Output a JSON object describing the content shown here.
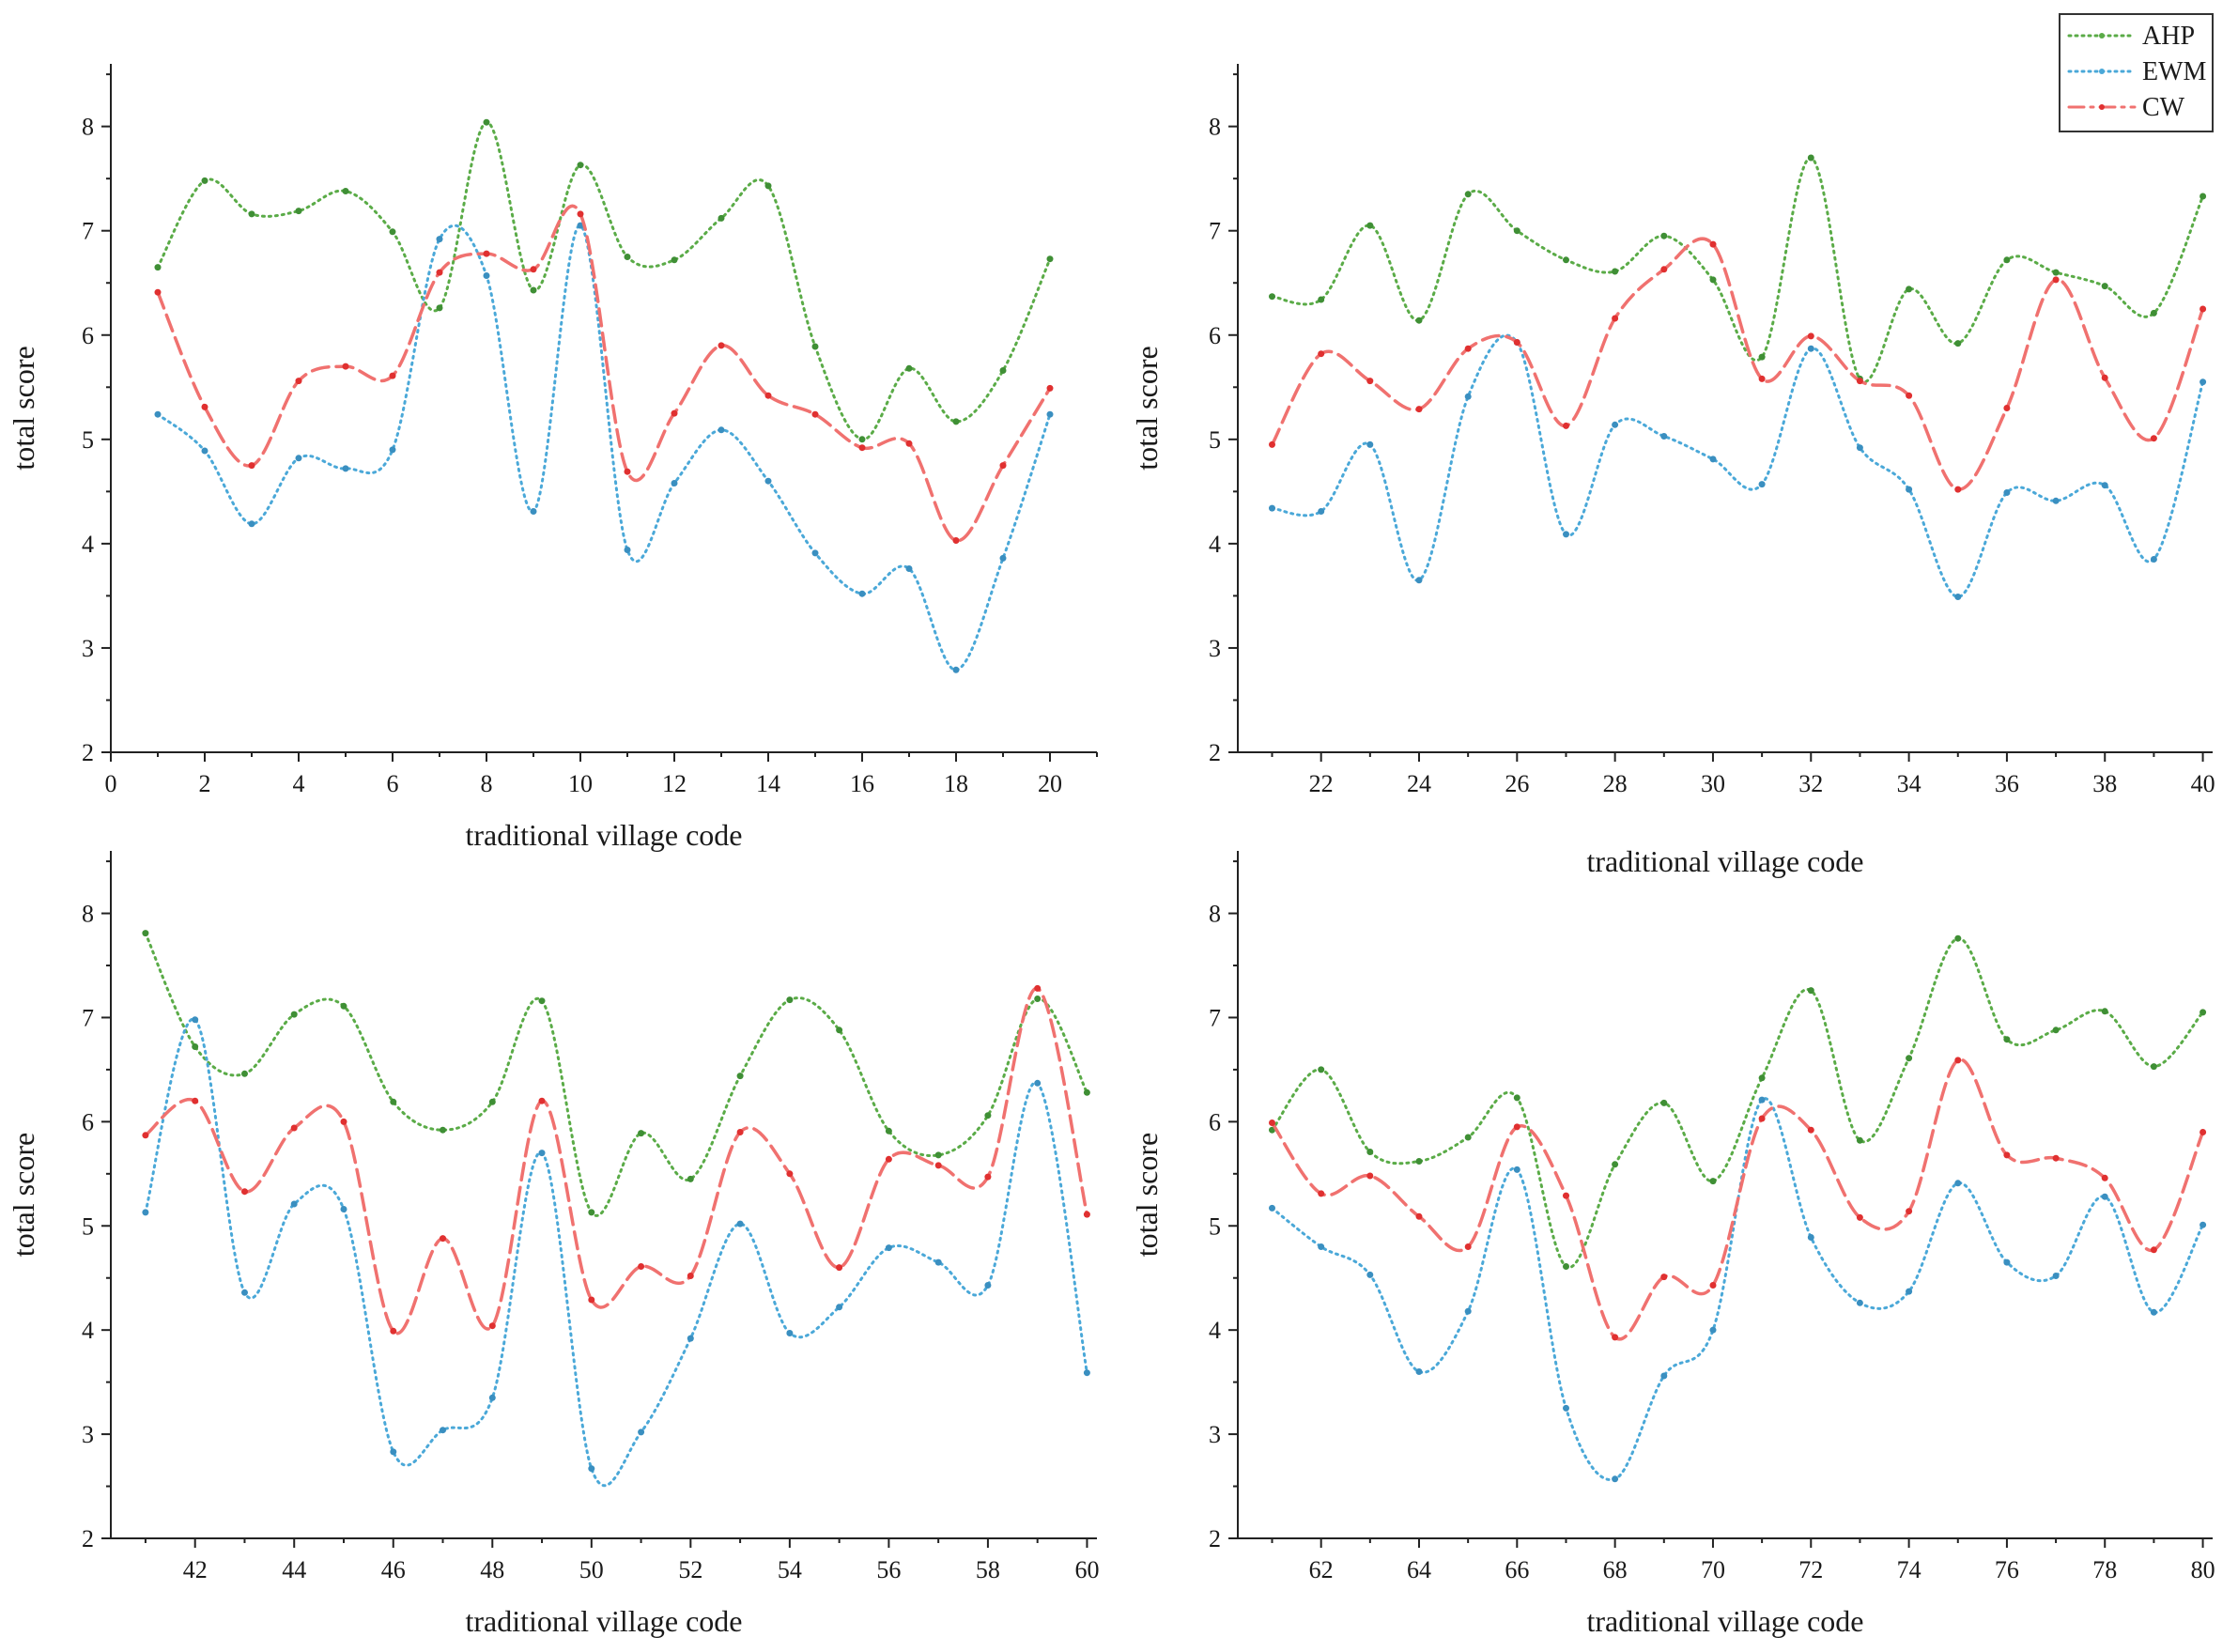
{
  "legend": {
    "items": [
      {
        "name": "AHP",
        "color": "#5aab47",
        "dash": "dotted"
      },
      {
        "name": "EWM",
        "color": "#4aa8d8",
        "dash": "dotted"
      },
      {
        "name": "CW",
        "color": "#f0716f",
        "dash": "dashdot"
      }
    ]
  },
  "chart_data": [
    {
      "type": "line",
      "title": "",
      "xlabel": "traditional village code",
      "ylabel": "total score",
      "xlim": [
        0,
        21
      ],
      "ylim": [
        2,
        8.6
      ],
      "xticks": [
        0,
        2,
        4,
        6,
        8,
        10,
        12,
        14,
        16,
        18,
        20
      ],
      "yticks": [
        2,
        3,
        4,
        5,
        6,
        7,
        8
      ],
      "x": [
        1,
        2,
        3,
        4,
        5,
        6,
        7,
        8,
        9,
        10,
        11,
        12,
        13,
        14,
        15,
        16,
        17,
        18,
        19,
        20
      ],
      "series": [
        {
          "name": "AHP",
          "values": [
            6.65,
            7.48,
            7.16,
            7.19,
            7.38,
            6.99,
            6.26,
            8.04,
            6.43,
            7.63,
            6.75,
            6.72,
            7.12,
            7.43,
            5.89,
            5.0,
            5.68,
            5.17,
            5.66,
            6.73
          ]
        },
        {
          "name": "EWM",
          "values": [
            5.24,
            4.89,
            4.19,
            4.82,
            4.72,
            4.9,
            6.92,
            6.57,
            4.31,
            7.05,
            3.94,
            4.58,
            5.09,
            4.6,
            3.91,
            3.52,
            3.76,
            2.79,
            3.86,
            5.24
          ]
        },
        {
          "name": "CW",
          "values": [
            6.41,
            5.31,
            4.75,
            5.56,
            5.7,
            5.61,
            6.6,
            6.78,
            6.63,
            7.16,
            4.69,
            5.25,
            5.9,
            5.42,
            5.24,
            4.92,
            4.96,
            4.03,
            4.75,
            5.49
          ]
        }
      ]
    },
    {
      "type": "line",
      "title": "",
      "xlabel": "traditional village code",
      "ylabel": "total score",
      "xlim": [
        20.3,
        40.2
      ],
      "ylim": [
        2,
        8.6
      ],
      "xticks": [
        22,
        24,
        26,
        28,
        30,
        32,
        34,
        36,
        38,
        40
      ],
      "yticks": [
        2,
        3,
        4,
        5,
        6,
        7,
        8
      ],
      "x": [
        21,
        22,
        23,
        24,
        25,
        26,
        27,
        28,
        29,
        30,
        31,
        32,
        33,
        34,
        35,
        36,
        37,
        38,
        39,
        40
      ],
      "series": [
        {
          "name": "AHP",
          "values": [
            6.37,
            6.34,
            7.05,
            6.14,
            7.35,
            7.0,
            6.72,
            6.61,
            6.95,
            6.53,
            5.79,
            7.7,
            5.58,
            6.44,
            5.92,
            6.72,
            6.6,
            6.47,
            6.21,
            7.33
          ]
        },
        {
          "name": "EWM",
          "values": [
            4.34,
            4.31,
            4.95,
            3.65,
            5.41,
            5.93,
            4.09,
            5.14,
            5.03,
            4.81,
            4.57,
            5.87,
            4.92,
            4.52,
            3.49,
            4.49,
            4.41,
            4.56,
            3.85,
            5.55
          ]
        },
        {
          "name": "CW",
          "values": [
            4.95,
            5.82,
            5.56,
            5.29,
            5.87,
            5.93,
            5.13,
            6.16,
            6.63,
            6.87,
            5.58,
            5.99,
            5.56,
            5.42,
            4.52,
            5.3,
            6.53,
            5.59,
            5.01,
            6.25
          ]
        }
      ]
    },
    {
      "type": "line",
      "title": "",
      "xlabel": "traditional village code",
      "ylabel": "total score",
      "xlim": [
        40.3,
        60.2
      ],
      "ylim": [
        2,
        8.6
      ],
      "xticks": [
        42,
        44,
        46,
        48,
        50,
        52,
        54,
        56,
        58,
        60
      ],
      "yticks": [
        2,
        3,
        4,
        5,
        6,
        7,
        8
      ],
      "x": [
        41,
        42,
        43,
        44,
        45,
        46,
        47,
        48,
        49,
        50,
        51,
        52,
        53,
        54,
        55,
        56,
        57,
        58,
        59,
        60
      ],
      "series": [
        {
          "name": "AHP",
          "values": [
            7.81,
            6.72,
            6.46,
            7.03,
            7.11,
            6.19,
            5.92,
            6.19,
            7.16,
            5.13,
            5.89,
            5.45,
            6.44,
            7.17,
            6.88,
            5.91,
            5.68,
            6.06,
            7.18,
            6.28
          ]
        },
        {
          "name": "EWM",
          "values": [
            5.13,
            6.98,
            4.36,
            5.21,
            5.16,
            2.83,
            3.04,
            3.35,
            5.7,
            2.67,
            3.02,
            3.92,
            5.02,
            3.97,
            4.22,
            4.79,
            4.65,
            4.43,
            6.37,
            3.59
          ]
        },
        {
          "name": "CW",
          "values": [
            5.87,
            6.2,
            5.33,
            5.94,
            6.0,
            3.99,
            4.88,
            4.04,
            6.2,
            4.29,
            4.61,
            4.52,
            5.9,
            5.5,
            4.6,
            5.64,
            5.58,
            5.47,
            7.28,
            5.11
          ]
        }
      ]
    },
    {
      "type": "line",
      "title": "",
      "xlabel": "traditional village code",
      "ylabel": "total score",
      "xlim": [
        60.3,
        80.2
      ],
      "ylim": [
        2,
        8.6
      ],
      "xticks": [
        62,
        64,
        66,
        68,
        70,
        72,
        74,
        76,
        78,
        80
      ],
      "yticks": [
        2,
        3,
        4,
        5,
        6,
        7,
        8
      ],
      "x": [
        61,
        62,
        63,
        64,
        65,
        66,
        67,
        68,
        69,
        70,
        71,
        72,
        73,
        74,
        75,
        76,
        77,
        78,
        79,
        80
      ],
      "series": [
        {
          "name": "AHP",
          "values": [
            5.92,
            6.5,
            5.71,
            5.62,
            5.85,
            6.23,
            4.61,
            5.59,
            6.18,
            5.43,
            6.42,
            7.26,
            5.82,
            6.61,
            7.76,
            6.79,
            6.88,
            7.06,
            6.53,
            7.05
          ]
        },
        {
          "name": "EWM",
          "values": [
            5.17,
            4.8,
            4.53,
            3.6,
            4.18,
            5.54,
            3.25,
            2.57,
            3.56,
            4.0,
            6.21,
            4.89,
            4.26,
            4.37,
            5.41,
            4.65,
            4.52,
            5.28,
            4.17,
            5.01
          ]
        },
        {
          "name": "CW",
          "values": [
            5.99,
            5.31,
            5.48,
            5.09,
            4.8,
            5.95,
            5.29,
            3.93,
            4.51,
            4.43,
            6.03,
            5.92,
            5.08,
            5.14,
            6.59,
            5.68,
            5.65,
            5.46,
            4.77,
            5.9
          ]
        }
      ]
    }
  ]
}
